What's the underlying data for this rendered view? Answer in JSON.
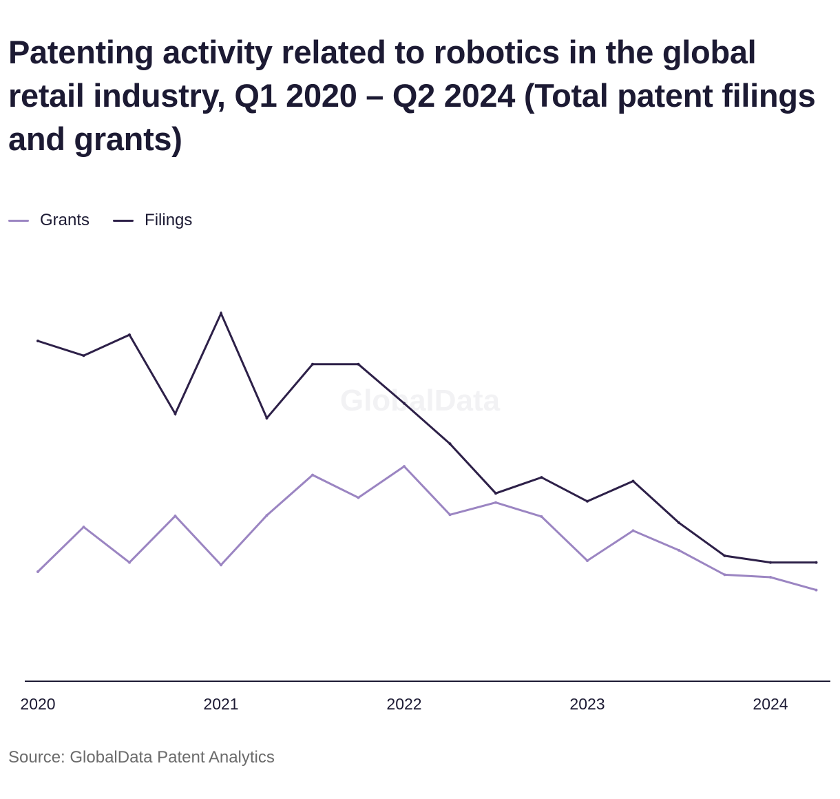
{
  "chart_data": {
    "type": "line",
    "title": "Patenting activity related to robotics in the global retail industry, Q1 2020 – Q2 2024 (Total patent filings and grants)",
    "x": [
      "Q1 2020",
      "Q2 2020",
      "Q3 2020",
      "Q4 2020",
      "Q1 2021",
      "Q2 2021",
      "Q3 2021",
      "Q4 2021",
      "Q1 2022",
      "Q2 2022",
      "Q3 2022",
      "Q4 2022",
      "Q1 2023",
      "Q2 2023",
      "Q3 2023",
      "Q4 2023",
      "Q1 2024",
      "Q2 2024"
    ],
    "x_ticks": [
      "2020",
      "2021",
      "2022",
      "2023",
      "2024"
    ],
    "series": [
      {
        "name": "Grants",
        "color": "#9b85c2",
        "values": [
          179,
          252,
          194,
          270,
          190,
          271,
          337,
          300,
          351,
          272,
          292,
          269,
          197,
          246,
          214,
          174,
          170,
          149
        ]
      },
      {
        "name": "Filings",
        "color": "#2d2048",
        "values": [
          556,
          532,
          566,
          437,
          601,
          430,
          518,
          518,
          454,
          388,
          307,
          333,
          294,
          327,
          259,
          205,
          194,
          194
        ]
      }
    ],
    "ylim": [
      0,
      780
    ],
    "grid": false,
    "legend_position": "top-left",
    "watermark": "GlobalData"
  },
  "legend": [
    {
      "label": "Grants",
      "color": "#9b85c2"
    },
    {
      "label": "Filings",
      "color": "#2d2048"
    }
  ],
  "source": "Source: GlobalData Patent Analytics"
}
